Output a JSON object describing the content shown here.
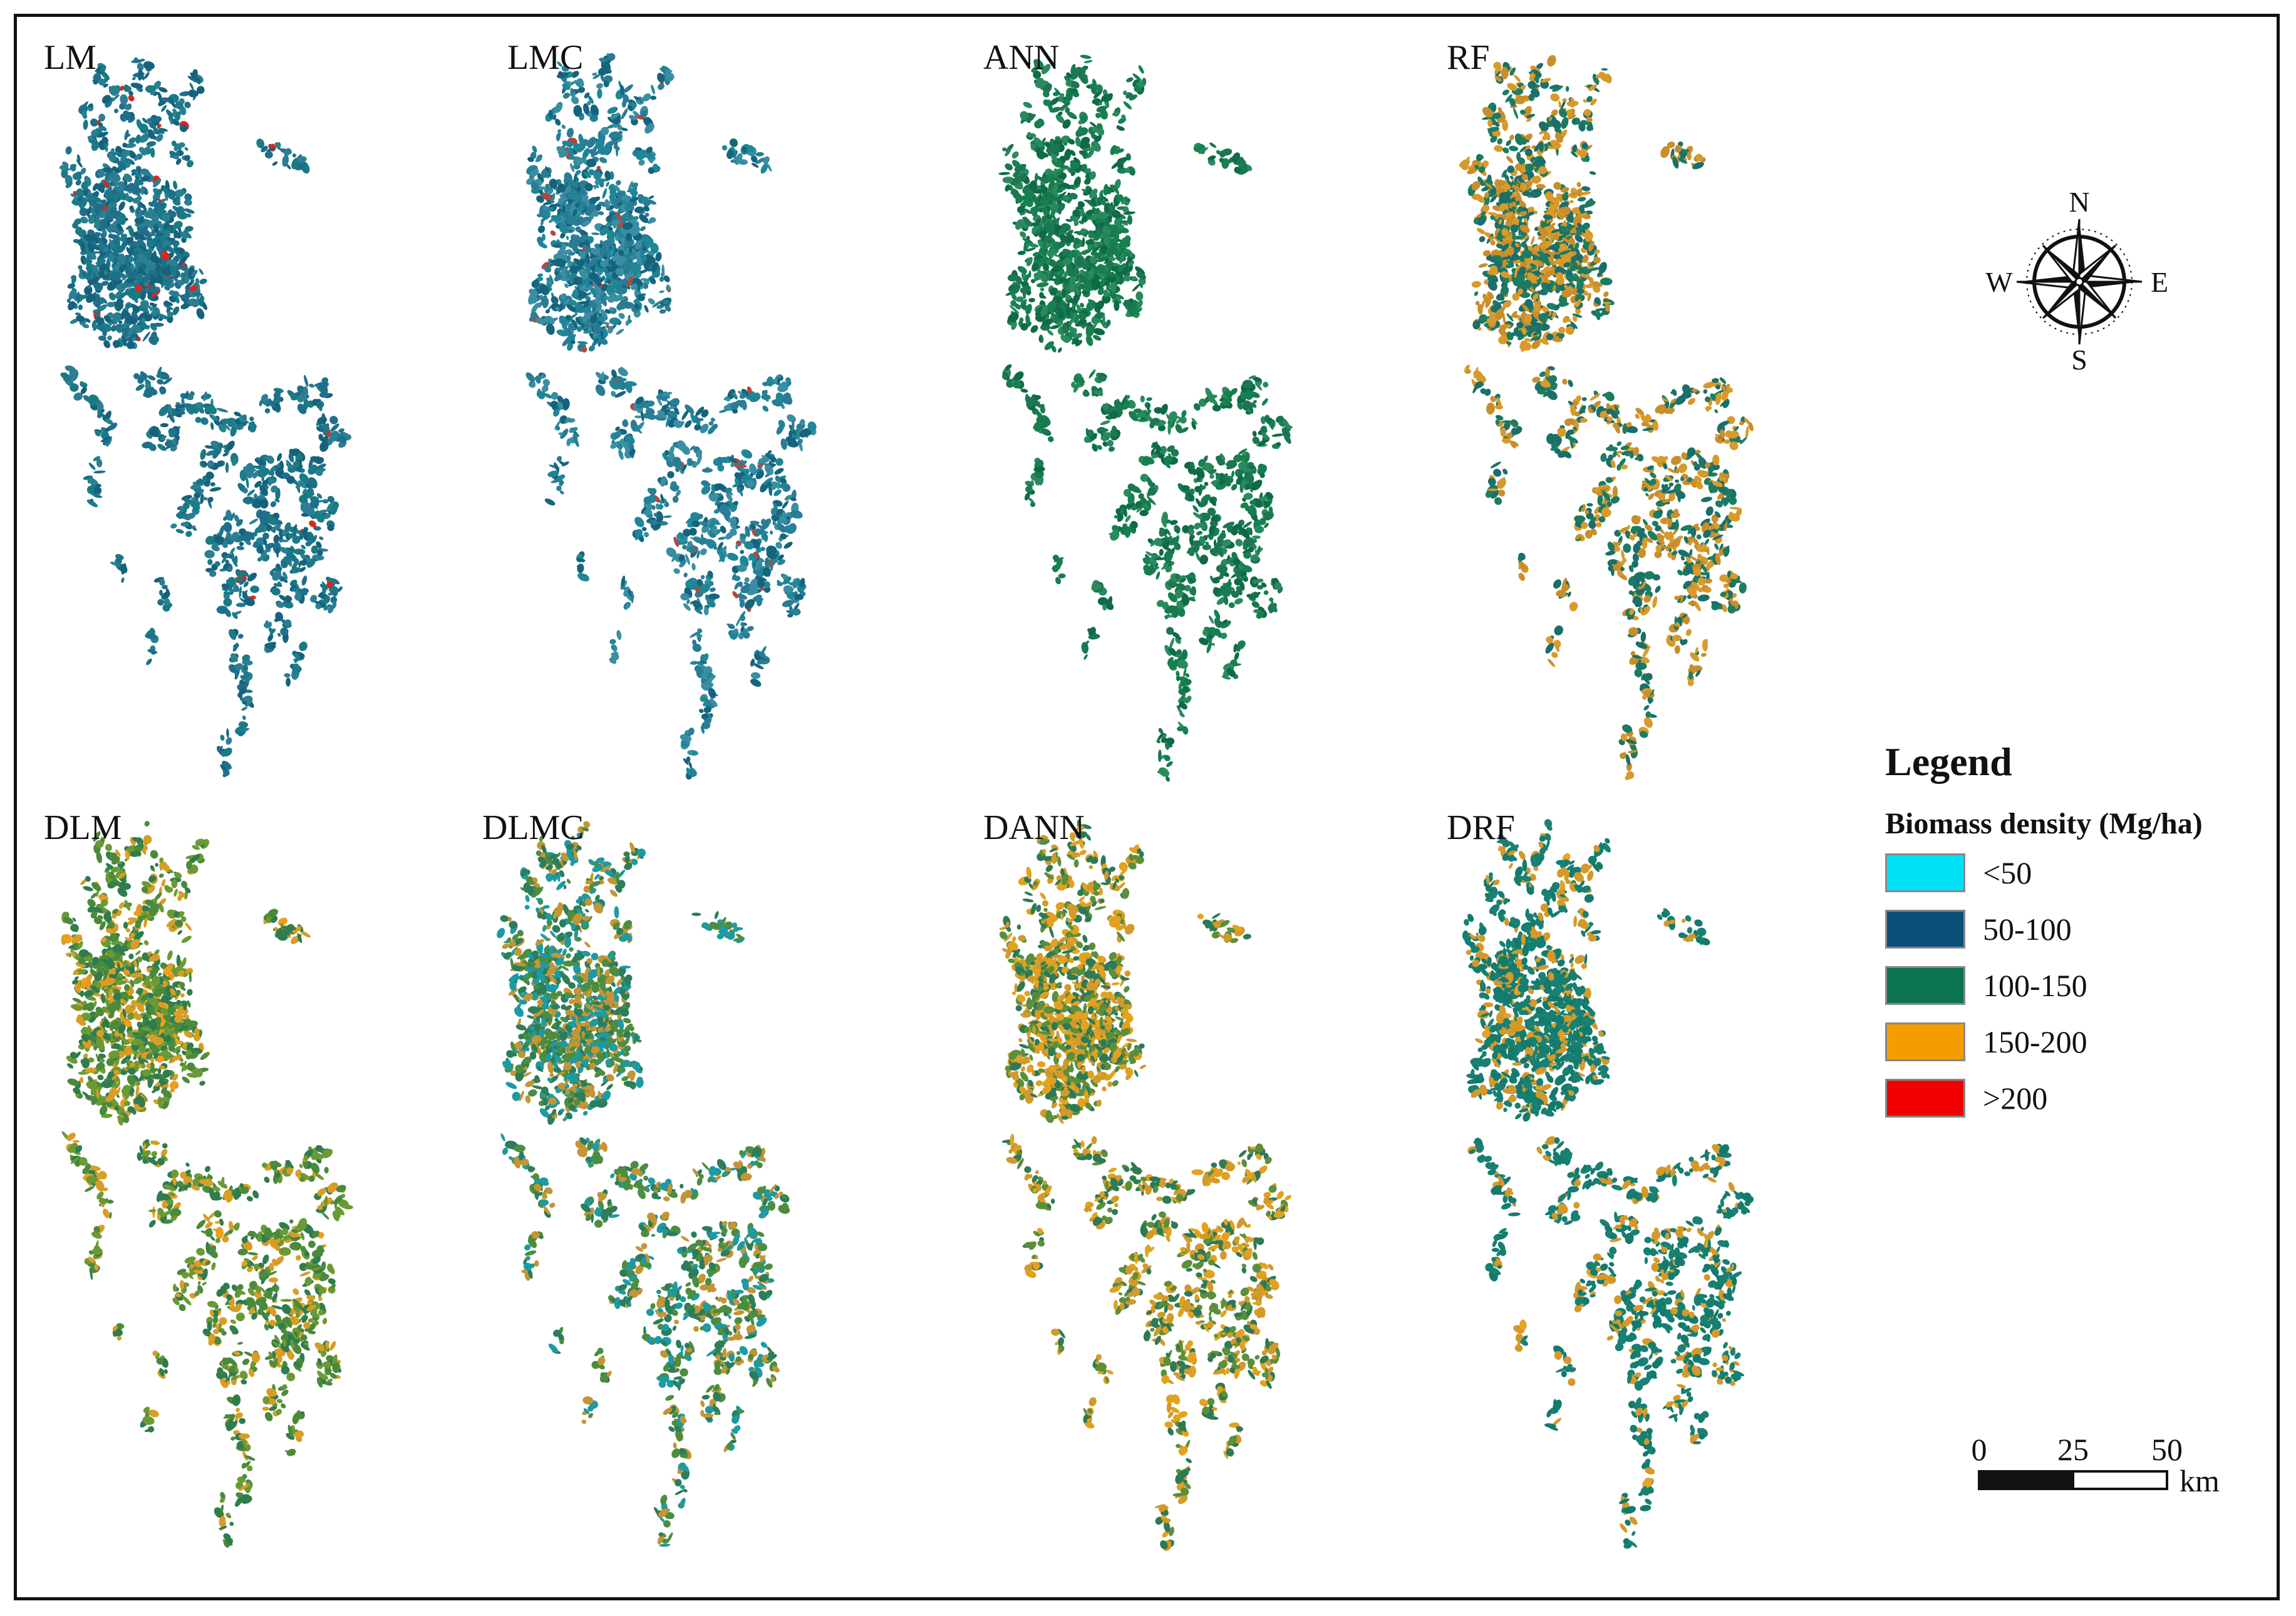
{
  "panels": [
    {
      "label": "LM",
      "scheme": [
        "#1f6f8b",
        "#1a7a86",
        "#2b7f92",
        "#16627c"
      ],
      "accent": "#d9281f"
    },
    {
      "label": "LMC",
      "scheme": [
        "#2a7c94",
        "#1f8697",
        "#3a8ea3",
        "#15647e"
      ],
      "accent": "#b5463d"
    },
    {
      "label": "ANN",
      "scheme": [
        "#1b7752",
        "#16804f",
        "#2a8a5d",
        "#0f6a47"
      ],
      "accent": null
    },
    {
      "label": "RF",
      "scheme": [
        "#1a6f6a",
        "#1c7c62",
        "#d89a2a",
        "#c98e2c"
      ],
      "accent": null
    },
    {
      "label": "DLM",
      "scheme": [
        "#4b8a3b",
        "#6b9a35",
        "#d99d25",
        "#2f7d4d"
      ],
      "accent": "#ef9f1a"
    },
    {
      "label": "DLMC",
      "scheme": [
        "#2c7d5a",
        "#4c8d40",
        "#c39534",
        "#1d9aa3"
      ],
      "accent": null
    },
    {
      "label": "DANN",
      "scheme": [
        "#5b8f3c",
        "#d29a2b",
        "#e2a21f",
        "#2d7a55"
      ],
      "accent": null
    },
    {
      "label": "DRF",
      "scheme": [
        "#147a6e",
        "#1a8073",
        "#138070",
        "#d5992a"
      ],
      "accent": "#e7a228"
    }
  ],
  "legend": {
    "title": "Legend",
    "subtitle": "Biomass density (Mg/ha)",
    "items": [
      {
        "label": "<50",
        "color": "#00e1f5"
      },
      {
        "label": "50-100",
        "color": "#0a4f79"
      },
      {
        "label": "100-150",
        "color": "#0c7350"
      },
      {
        "label": "150-200",
        "color": "#f59d00"
      },
      {
        "label": ">200",
        "color": "#f00000"
      }
    ]
  },
  "compass": {
    "n": "N",
    "s": "S",
    "e": "E",
    "w": "W"
  },
  "scalebar": {
    "ticks": [
      "0",
      "25",
      "50"
    ],
    "unit": "km"
  }
}
